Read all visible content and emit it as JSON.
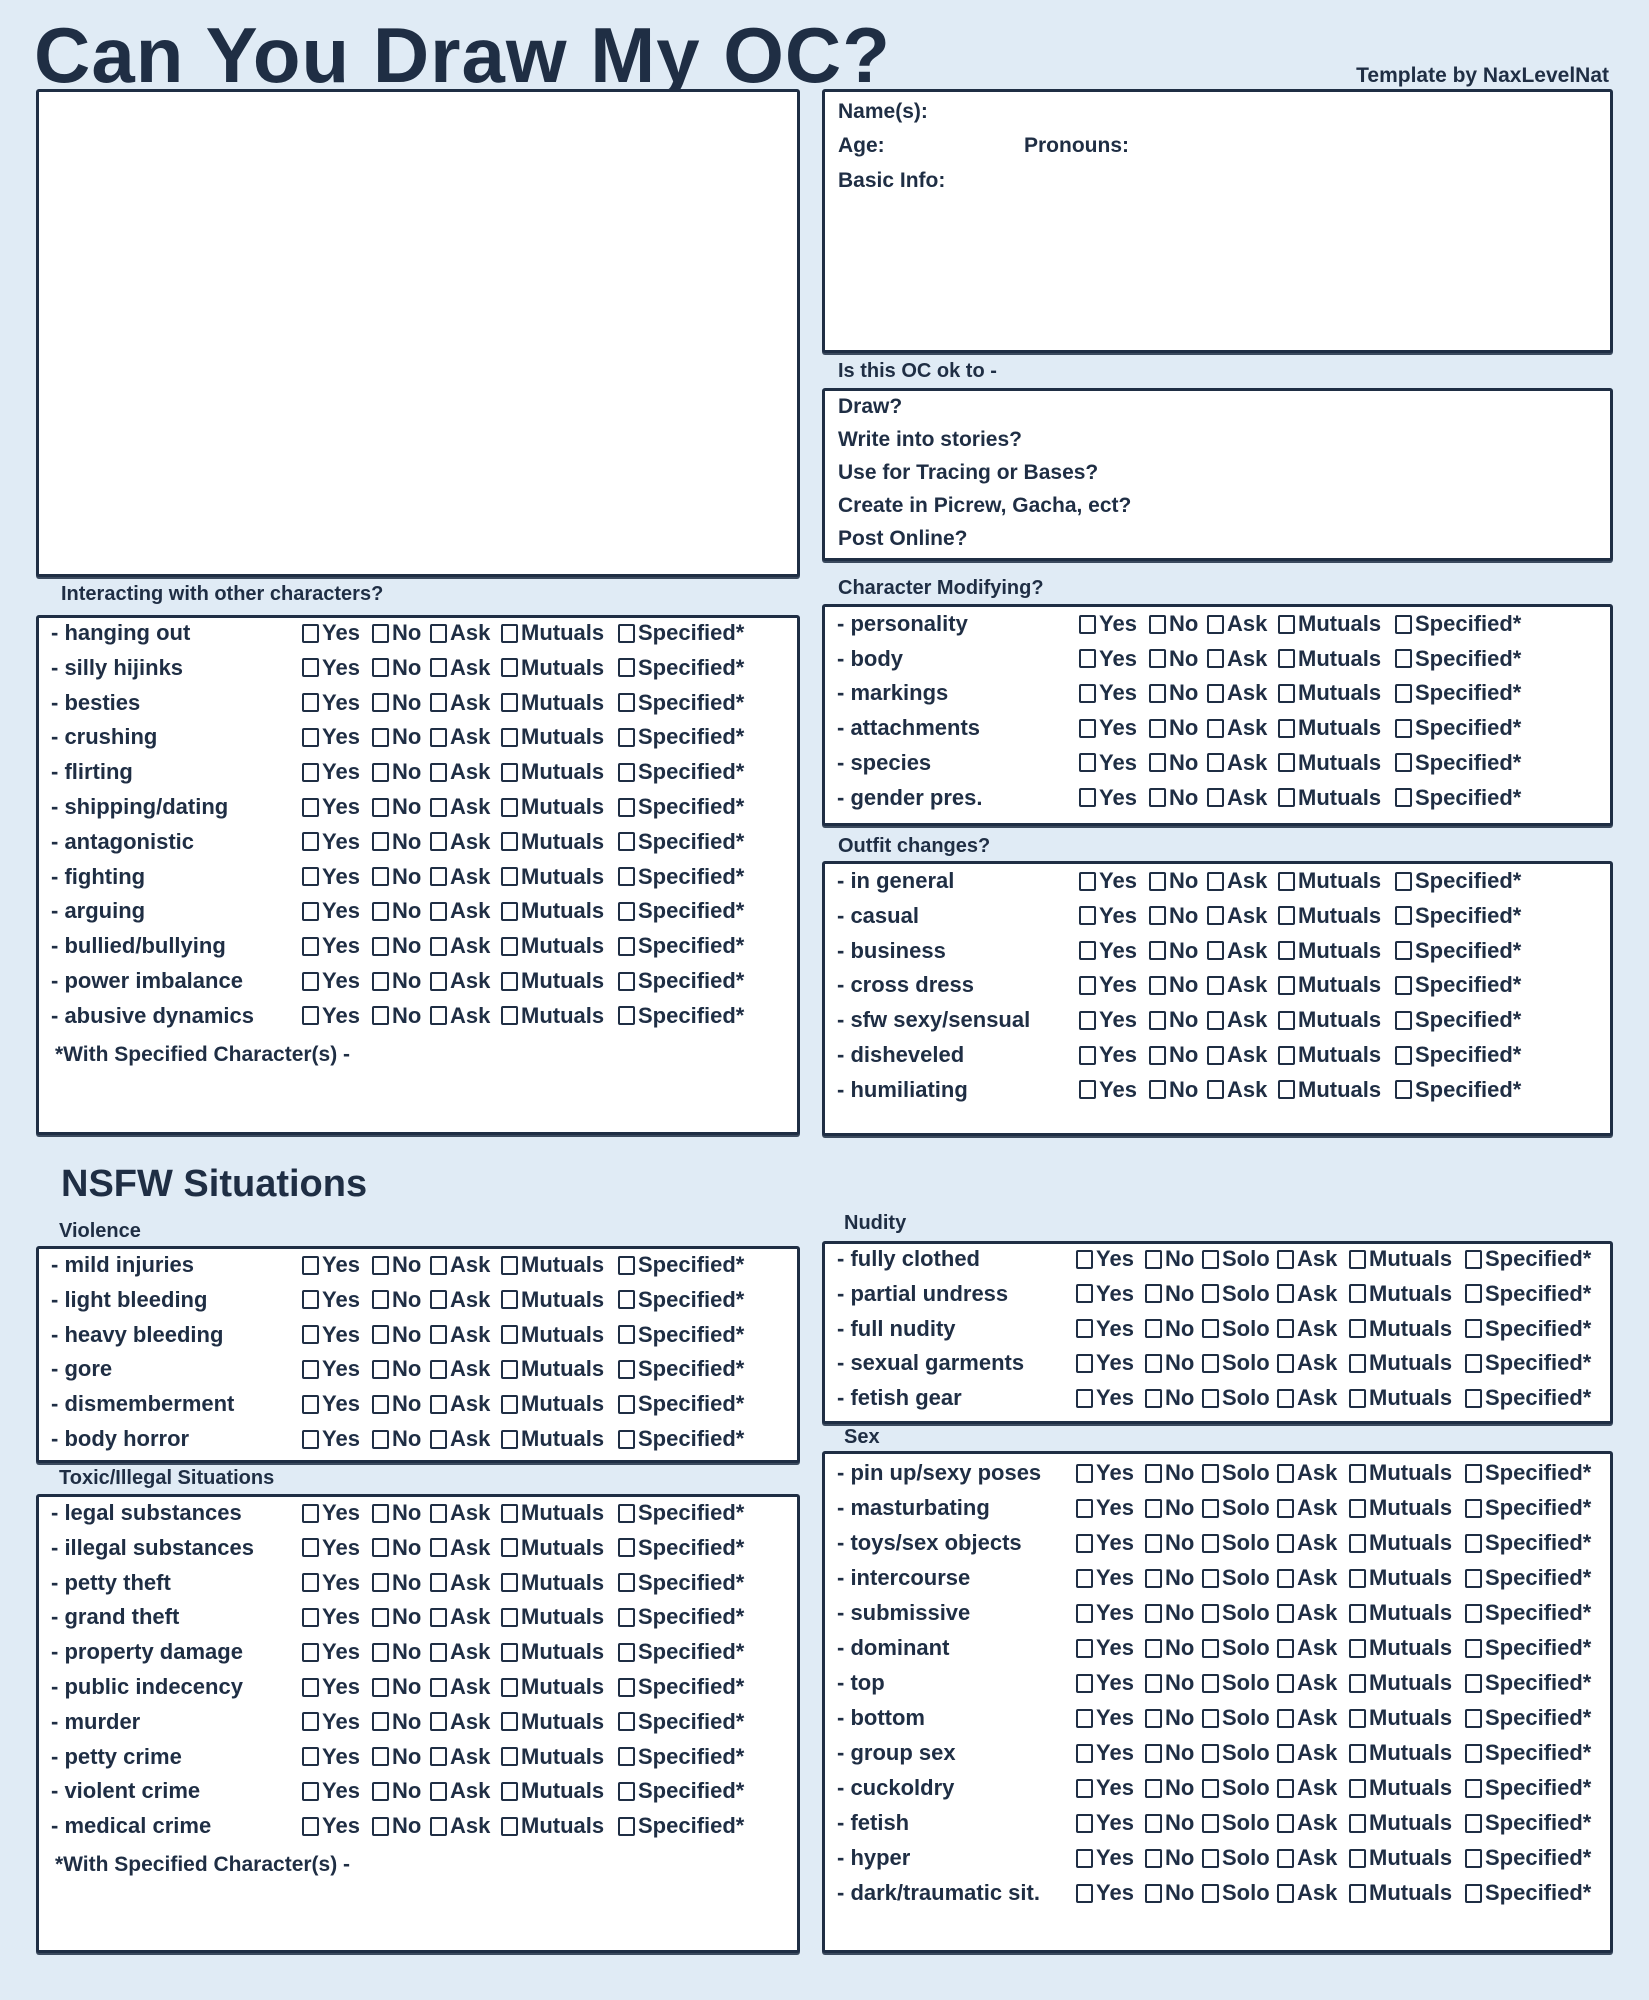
{
  "header": {
    "title": "Can You Draw My OC?",
    "credit": "Template by NaxLevelNat"
  },
  "info": {
    "name": "Name(s):",
    "age": "Age:",
    "pronouns": "Pronouns:",
    "basic": "Basic Info:"
  },
  "ok": {
    "label": "Is this OC ok to -",
    "items": [
      "Draw?",
      "Write into stories?",
      "Use for Tracing or Bases?",
      "Create in Picrew, Gacha, ect?",
      "Post Online?"
    ]
  },
  "nsfw_title": "NSFW Situations",
  "footnote": "*With Specified Character(s) -",
  "colors": {
    "background": "#e0ebf5",
    "ink": "#1f2e44",
    "panel": "#ffffff"
  },
  "checkbox_icon": "empty-square",
  "options5": [
    "Yes",
    "No",
    "Ask",
    "Mutuals",
    "Specified*"
  ],
  "options6": [
    "Yes",
    "No",
    "Solo",
    "Ask",
    "Mutuals",
    "Specified*"
  ],
  "sections": [
    {
      "id": "interacting",
      "label": "Interacting with other characters?",
      "rows": [
        "- hanging out",
        "- silly hijinks",
        "- besties",
        "- crushing",
        "- flirting",
        "- shipping/dating",
        "- antagonistic",
        "- fighting",
        "- arguing",
        "- bullied/bullying",
        "- power imbalance",
        "- abusive dynamics"
      ]
    },
    {
      "id": "modifying",
      "label": "Character Modifying?",
      "rows": [
        "- personality",
        "- body",
        "- markings",
        "- attachments",
        "- species",
        "- gender pres."
      ]
    },
    {
      "id": "outfit",
      "label": "Outfit changes?",
      "rows": [
        "- in general",
        "- casual",
        "- business",
        "- cross dress",
        "- sfw sexy/sensual",
        "- disheveled",
        "- humiliating"
      ]
    },
    {
      "id": "violence",
      "label": "Violence",
      "rows": [
        "- mild injuries",
        "- light bleeding",
        "- heavy bleeding",
        "- gore",
        "- dismemberment",
        "- body horror"
      ]
    },
    {
      "id": "toxic",
      "label": "Toxic/Illegal Situations",
      "rows": [
        "- legal substances",
        "- illegal substances",
        "- petty theft",
        "- grand theft",
        "- property damage",
        "- public indecency",
        "- murder",
        "- petty crime",
        "- violent crime",
        "- medical crime"
      ]
    },
    {
      "id": "nudity",
      "label": "Nudity",
      "rows": [
        "- fully clothed",
        "- partial undress",
        "- full nudity",
        "- sexual garments",
        "- fetish gear"
      ]
    },
    {
      "id": "sex",
      "label": "Sex",
      "rows": [
        "- pin up/sexy poses",
        "- masturbating",
        "- toys/sex objects",
        "- intercourse",
        "- submissive",
        "- dominant",
        "- top",
        "- bottom",
        "- group sex",
        "- cuckoldry",
        "- fetish",
        "- hyper",
        "- dark/traumatic sit."
      ]
    }
  ]
}
